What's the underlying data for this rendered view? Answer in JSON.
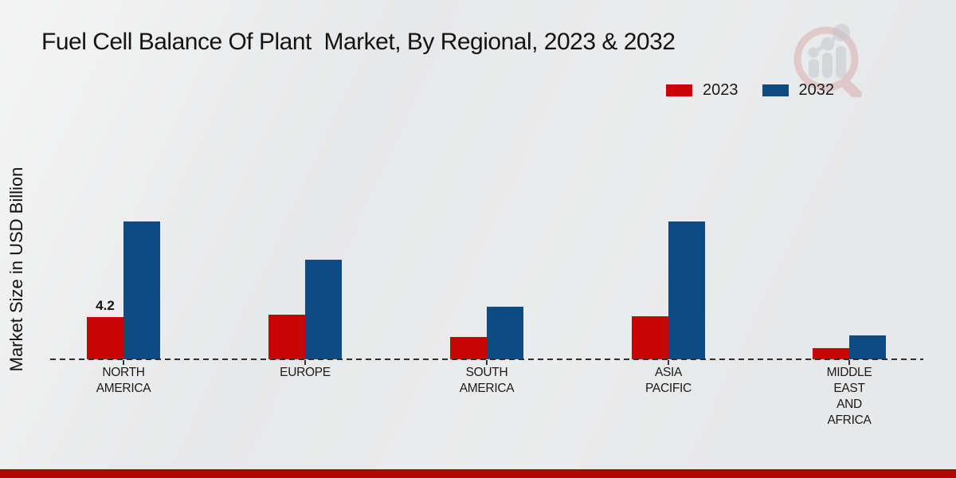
{
  "page": {
    "background_color": "#e7e8e9",
    "footer_bar_color": "#b20505"
  },
  "watermark": {
    "description": "magnifier-with-bar-chart-logo",
    "ring_color": "#d59c9c",
    "bars_color": "#c6c7cc"
  },
  "chart_data": {
    "type": "bar",
    "title": "Fuel Cell Balance Of Plant  Market, By Regional, 2023 & 2032",
    "ylabel": "Market Size in USD Billion",
    "xlabel": "",
    "categories": [
      "NORTH AMERICA",
      "EUROPE",
      "SOUTH AMERICA",
      "ASIA PACIFIC",
      "MIDDLE EAST AND AFRICA"
    ],
    "series": [
      {
        "name": "2023",
        "color": "#c90404",
        "values": [
          4.2,
          4.4,
          2.2,
          4.3,
          1.1
        ]
      },
      {
        "name": "2032",
        "color": "#0e4b82",
        "values": [
          13.7,
          9.9,
          5.2,
          13.7,
          2.4
        ]
      }
    ],
    "data_labels": [
      {
        "series": "2023",
        "category": "NORTH AMERICA",
        "text": "4.2"
      }
    ],
    "ylim": [
      0,
      14.5
    ],
    "grid": false,
    "axis_style": "dashed-baseline-with-ticks",
    "legend_position": "top-right"
  }
}
